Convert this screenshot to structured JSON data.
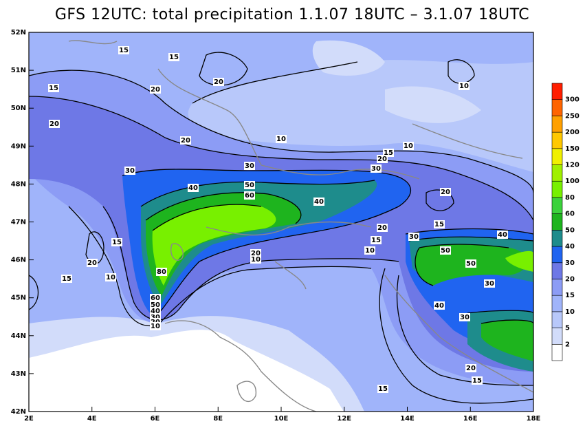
{
  "title": "GFS 12UTC: total precipitation 1.1.07 18UTC – 3.1.07 18UTC",
  "lon_ticks": [
    {
      "value": 2,
      "label": "2E"
    },
    {
      "value": 4,
      "label": "4E"
    },
    {
      "value": 6,
      "label": "6E"
    },
    {
      "value": 8,
      "label": "8E"
    },
    {
      "value": 10,
      "label": "10E"
    },
    {
      "value": 12,
      "label": "12E"
    },
    {
      "value": 14,
      "label": "14E"
    },
    {
      "value": 16,
      "label": "16E"
    },
    {
      "value": 18,
      "label": "18E"
    }
  ],
  "lat_ticks": [
    {
      "value": 42,
      "label": "42N"
    },
    {
      "value": 43,
      "label": "43N"
    },
    {
      "value": 44,
      "label": "44N"
    },
    {
      "value": 45,
      "label": "45N"
    },
    {
      "value": 46,
      "label": "46N"
    },
    {
      "value": 47,
      "label": "47N"
    },
    {
      "value": 48,
      "label": "48N"
    },
    {
      "value": 49,
      "label": "49N"
    },
    {
      "value": 50,
      "label": "50N"
    },
    {
      "value": 51,
      "label": "51N"
    },
    {
      "value": 52,
      "label": "52N"
    }
  ],
  "colorbar": {
    "labels": [
      2,
      5,
      10,
      15,
      20,
      30,
      40,
      50,
      60,
      80,
      100,
      120,
      150,
      200,
      250,
      300
    ],
    "colors": [
      "#ffffff",
      "#d2dcfa",
      "#b8c8fa",
      "#a0b4fa",
      "#8c9cf5",
      "#6e78e6",
      "#2064f0",
      "#1e8c8c",
      "#1eb41e",
      "#3cd23c",
      "#78f000",
      "#a0f000",
      "#f0f000",
      "#ffc800",
      "#ffa000",
      "#ff6400",
      "#ff1e00"
    ]
  },
  "contour_labels": [
    "15",
    "15",
    "20",
    "15",
    "20",
    "20",
    "20",
    "10",
    "10",
    "15",
    "20",
    "30",
    "30",
    "30",
    "40",
    "50",
    "60",
    "40",
    "20",
    "15",
    "20",
    "30",
    "15",
    "10",
    "40",
    "15",
    "50",
    "20",
    "50",
    "20",
    "10",
    "80",
    "10",
    "15",
    "30",
    "40",
    "60",
    "50",
    "40",
    "30",
    "20",
    "10",
    "30",
    "20",
    "15",
    "15",
    "10"
  ]
}
